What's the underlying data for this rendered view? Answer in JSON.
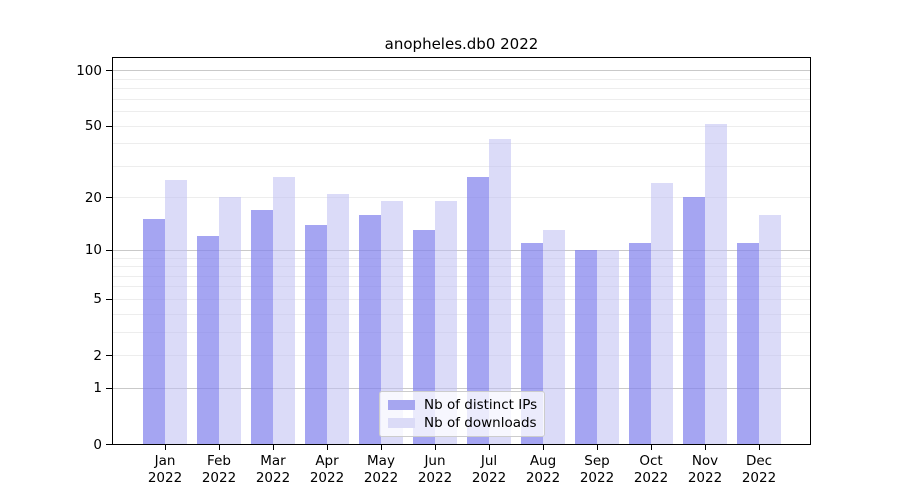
{
  "chart_data": {
    "type": "bar",
    "title": "anopheles.db0 2022",
    "categories": [
      "Jan 2022",
      "Feb 2022",
      "Mar 2022",
      "Apr 2022",
      "May 2022",
      "Jun 2022",
      "Jul 2022",
      "Aug 2022",
      "Sep 2022",
      "Oct 2022",
      "Nov 2022",
      "Dec 2022"
    ],
    "series": [
      {
        "name": "Nb of distinct IPs",
        "values": [
          15,
          12,
          17,
          14,
          16,
          13,
          26,
          11,
          10,
          11,
          20,
          11
        ],
        "color": "#a6a6f0",
        "fill": "rgba(130,130,237,0.72)"
      },
      {
        "name": "Nb of downloads",
        "values": [
          25,
          20,
          26,
          21,
          19,
          19,
          42,
          13,
          10,
          24,
          51,
          16
        ],
        "color": "#dbdbf7",
        "fill": "rgba(190,190,242,0.55)"
      }
    ],
    "xlabel": "",
    "ylabel": "",
    "yscale": "log1p",
    "ylim": [
      0,
      116
    ],
    "yticks": [
      0,
      1,
      2,
      5,
      10,
      20,
      50,
      100
    ],
    "major_gridlines": [
      1,
      10,
      100
    ],
    "minor_gridlines": [
      2,
      3,
      4,
      5,
      6,
      7,
      8,
      9,
      20,
      30,
      40,
      50,
      60,
      70,
      80,
      90
    ],
    "grid": "on",
    "legend_position": "lower center",
    "colors": {
      "grid_minor": "#ededed",
      "grid_major": "#c9c9c9",
      "axis": "#000000",
      "text": "#000000",
      "background": "#ffffff"
    }
  }
}
